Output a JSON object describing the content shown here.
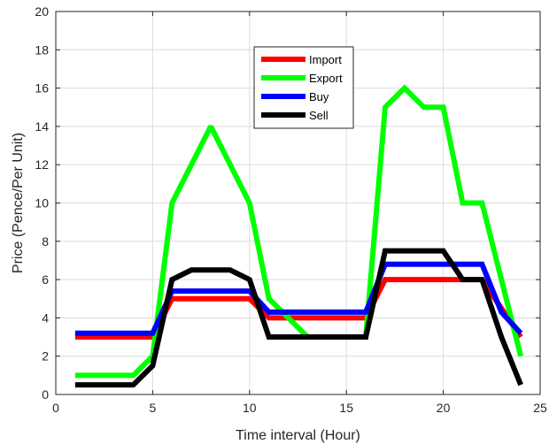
{
  "chart_data": {
    "type": "line",
    "title": "",
    "xlabel": "Time interval (Hour)",
    "ylabel": "Price (Pence/Per Unit)",
    "xlim": [
      0,
      25
    ],
    "ylim": [
      0,
      20
    ],
    "xticks": [
      0,
      5,
      10,
      15,
      20,
      25
    ],
    "yticks": [
      0,
      2,
      4,
      6,
      8,
      10,
      12,
      14,
      16,
      18,
      20
    ],
    "grid": true,
    "legend_position": "upper-center",
    "x": [
      1,
      2,
      3,
      4,
      5,
      6,
      7,
      8,
      9,
      10,
      11,
      12,
      13,
      14,
      15,
      16,
      17,
      18,
      19,
      20,
      21,
      22,
      23,
      24
    ],
    "series": [
      {
        "name": "Import",
        "color": "#ff0000",
        "values": [
          3,
          3,
          3,
          3,
          3,
          5,
          5,
          5,
          5,
          5,
          4,
          4,
          4,
          4,
          4,
          4,
          6,
          6,
          6,
          6,
          6,
          6,
          4.5,
          3
        ]
      },
      {
        "name": "Export",
        "color": "#00ff00",
        "values": [
          1,
          1,
          1,
          1,
          2,
          10,
          12,
          14,
          12,
          10,
          5,
          4,
          3,
          3,
          3,
          3,
          15,
          16,
          15,
          15,
          10,
          10,
          6,
          2
        ]
      },
      {
        "name": "Buy",
        "color": "#0000ff",
        "values": [
          3.2,
          3.2,
          3.2,
          3.2,
          3.2,
          5.4,
          5.4,
          5.4,
          5.4,
          5.4,
          4.3,
          4.3,
          4.3,
          4.3,
          4.3,
          4.3,
          6.8,
          6.8,
          6.8,
          6.8,
          6.8,
          6.8,
          4.3,
          3.2
        ]
      },
      {
        "name": "Sell",
        "color": "#000000",
        "values": [
          0.5,
          0.5,
          0.5,
          0.5,
          1.5,
          6,
          6.5,
          6.5,
          6.5,
          6,
          3,
          3,
          3,
          3,
          3,
          3,
          7.5,
          7.5,
          7.5,
          7.5,
          6,
          6,
          3,
          0.5
        ]
      }
    ]
  }
}
